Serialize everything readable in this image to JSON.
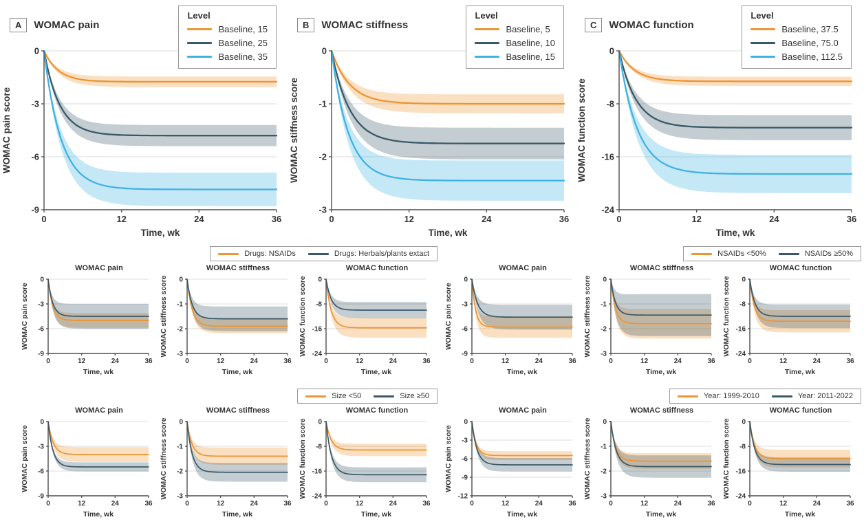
{
  "colors": {
    "orange": "#EE9432",
    "dark": "#3A5968",
    "blue": "#3FB2E5",
    "grid": "#DCDCDC",
    "axis": "#4D4D4D",
    "border": "#9B9B9B",
    "text": "#333333",
    "band_opacity": 0.3
  },
  "chart_data": {
    "xlabel": "Time, wk",
    "xlim": [
      0,
      36
    ],
    "x_ticks": [
      0,
      12,
      24,
      36
    ],
    "top_panels": [
      {
        "panel": "A",
        "type": "line",
        "title": "WOMAC pain",
        "ylabel": "WOMAC pain score",
        "legend_title": "Level",
        "ylim": [
          -9,
          0
        ],
        "y_ticks": [
          0,
          -3,
          -6,
          -9
        ],
        "series": [
          {
            "name": "Baseline, 15",
            "color": "orange",
            "plateau": -1.75,
            "tau": 2.2,
            "ci": 0.3
          },
          {
            "name": "Baseline, 25",
            "color": "dark",
            "plateau": -4.8,
            "tau": 2.4,
            "ci": 0.6
          },
          {
            "name": "Baseline, 35",
            "color": "blue",
            "plateau": -7.85,
            "tau": 2.6,
            "ci": 0.95
          }
        ]
      },
      {
        "panel": "B",
        "type": "line",
        "title": "WOMAC stiffness",
        "ylabel": "WOMAC stiffness score",
        "legend_title": "Level",
        "ylim": [
          -3,
          0
        ],
        "y_ticks": [
          0,
          -1,
          -2,
          -3
        ],
        "series": [
          {
            "name": "Baseline, 5",
            "color": "orange",
            "plateau": -1.0,
            "tau": 2.8,
            "ci": 0.18
          },
          {
            "name": "Baseline, 10",
            "color": "dark",
            "plateau": -1.75,
            "tau": 2.8,
            "ci": 0.3
          },
          {
            "name": "Baseline, 15",
            "color": "blue",
            "plateau": -2.45,
            "tau": 2.6,
            "ci": 0.38
          }
        ]
      },
      {
        "panel": "C",
        "type": "line",
        "title": "WOMAC function",
        "ylabel": "WOMAC function score",
        "legend_title": "Level",
        "ylim": [
          -24,
          0
        ],
        "y_ticks": [
          0,
          -8,
          -16,
          -24
        ],
        "series": [
          {
            "name": "Baseline, 37.5",
            "color": "orange",
            "plateau": -4.6,
            "tau": 2.4,
            "ci": 0.7
          },
          {
            "name": "Baseline, 75.0",
            "color": "dark",
            "plateau": -11.6,
            "tau": 2.6,
            "ci": 1.9
          },
          {
            "name": "Baseline, 112.5",
            "color": "blue",
            "plateau": -18.6,
            "tau": 2.8,
            "ci": 2.9
          }
        ]
      }
    ],
    "groups": [
      {
        "legend": [
          {
            "name": "Drugs: NSAIDs",
            "color": "orange"
          },
          {
            "name": "Drugs: Herbals/plants extact",
            "color": "dark"
          }
        ],
        "charts": [
          {
            "type": "line",
            "title": "WOMAC pain",
            "ylabel": "WOMAC pain score",
            "ylim": [
              -9,
              0
            ],
            "y_ticks": [
              0,
              -3,
              -6,
              -9
            ],
            "series": [
              {
                "name": "Drugs: NSAIDs",
                "color": "orange",
                "plateau": -5.0,
                "tau": 1.6,
                "ci": 0.9
              },
              {
                "name": "Drugs: Herbals/plants extact",
                "color": "dark",
                "plateau": -4.5,
                "tau": 1.6,
                "ci": 1.5
              }
            ]
          },
          {
            "type": "line",
            "title": "WOMAC stiffness",
            "ylabel": "WOMAC stiffness score",
            "ylim": [
              -3,
              0
            ],
            "y_ticks": [
              0,
              -1,
              -2,
              -3
            ],
            "series": [
              {
                "name": "Drugs: NSAIDs",
                "color": "orange",
                "plateau": -1.9,
                "tau": 1.8,
                "ci": 0.28
              },
              {
                "name": "Drugs: Herbals/plants extact",
                "color": "dark",
                "plateau": -1.6,
                "tau": 1.8,
                "ci": 0.5
              }
            ]
          },
          {
            "type": "line",
            "title": "WOMAC function",
            "ylabel": "WOMAC function score",
            "ylim": [
              -24,
              0
            ],
            "y_ticks": [
              0,
              -8,
              -16,
              -24
            ],
            "series": [
              {
                "name": "Drugs: NSAIDs",
                "color": "orange",
                "plateau": -15.7,
                "tau": 1.8,
                "ci": 3.2
              },
              {
                "name": "Drugs: Herbals/plants extact",
                "color": "dark",
                "plateau": -10.0,
                "tau": 1.8,
                "ci": 2.6
              }
            ]
          }
        ]
      },
      {
        "legend": [
          {
            "name": "NSAIDs <50%",
            "color": "orange"
          },
          {
            "name": "NSAIDs ≥50%",
            "color": "dark"
          }
        ],
        "charts": [
          {
            "type": "line",
            "title": "WOMAC pain",
            "ylabel": "WOMAC pain score",
            "ylim": [
              -9,
              0
            ],
            "y_ticks": [
              0,
              -3,
              -6,
              -9
            ],
            "series": [
              {
                "name": "NSAIDs <50%",
                "color": "orange",
                "plateau": -5.8,
                "tau": 1.3,
                "ci": 1.3
              },
              {
                "name": "NSAIDs ≥50%",
                "color": "dark",
                "plateau": -4.6,
                "tau": 2.0,
                "ci": 1.5
              }
            ]
          },
          {
            "type": "line",
            "title": "WOMAC stiffness",
            "ylabel": "WOMAC stiffness score",
            "ylim": [
              -3,
              0
            ],
            "y_ticks": [
              0,
              -1,
              -2,
              -3
            ],
            "series": [
              {
                "name": "NSAIDs <50%",
                "color": "orange",
                "plateau": -1.8,
                "tau": 1.6,
                "ci": 0.6
              },
              {
                "name": "NSAIDs ≥50%",
                "color": "dark",
                "plateau": -1.45,
                "tau": 1.6,
                "ci": 0.85
              }
            ]
          },
          {
            "type": "line",
            "title": "WOMAC function",
            "ylabel": "WOMAC function score",
            "ylim": [
              -24,
              0
            ],
            "y_ticks": [
              0,
              -8,
              -16,
              -24
            ],
            "series": [
              {
                "name": "NSAIDs <50%",
                "color": "orange",
                "plateau": -13.6,
                "tau": 1.6,
                "ci": 3.6
              },
              {
                "name": "NSAIDs ≥50%",
                "color": "dark",
                "plateau": -12.0,
                "tau": 1.8,
                "ci": 3.8
              }
            ]
          }
        ]
      },
      {
        "legend": [
          {
            "name": "Size <50",
            "color": "orange"
          },
          {
            "name": "Size ≥50",
            "color": "dark"
          }
        ],
        "charts": [
          {
            "type": "line",
            "title": "WOMAC pain",
            "ylabel": "WOMAC pain score",
            "ylim": [
              -9,
              0
            ],
            "y_ticks": [
              0,
              -3,
              -6,
              -9
            ],
            "series": [
              {
                "name": "Size <50",
                "color": "orange",
                "plateau": -4.0,
                "tau": 1.8,
                "ci": 0.9
              },
              {
                "name": "Size ≥50",
                "color": "dark",
                "plateau": -5.5,
                "tau": 1.7,
                "ci": 0.55
              }
            ]
          },
          {
            "type": "line",
            "title": "WOMAC stiffness",
            "ylabel": "WOMAC stiffness score",
            "ylim": [
              -3,
              0
            ],
            "y_ticks": [
              0,
              -1,
              -2,
              -3
            ],
            "series": [
              {
                "name": "Size <50",
                "color": "orange",
                "plateau": -1.4,
                "tau": 1.7,
                "ci": 0.35
              },
              {
                "name": "Size ≥50",
                "color": "dark",
                "plateau": -2.05,
                "tau": 1.8,
                "ci": 0.38
              }
            ]
          },
          {
            "type": "line",
            "title": "WOMAC function",
            "ylabel": "WOMAC function score",
            "ylim": [
              -24,
              0
            ],
            "y_ticks": [
              0,
              -8,
              -16,
              -24
            ],
            "series": [
              {
                "name": "Size <50",
                "color": "orange",
                "plateau": -9.2,
                "tau": 1.8,
                "ci": 2.0
              },
              {
                "name": "Size ≥50",
                "color": "dark",
                "plateau": -17.2,
                "tau": 1.9,
                "ci": 2.4
              }
            ]
          }
        ]
      },
      {
        "legend": [
          {
            "name": "Year: 1999-2010",
            "color": "orange"
          },
          {
            "name": "Year: 2011-2022",
            "color": "dark"
          }
        ],
        "charts": [
          {
            "type": "line",
            "title": "WOMAC pain",
            "ylabel": "WOMAC pain score",
            "ylim": [
              -12,
              0
            ],
            "y_ticks": [
              0,
              -3,
              -6,
              -9,
              -12
            ],
            "series": [
              {
                "name": "Year: 1999-2010",
                "color": "orange",
                "plateau": -5.5,
                "tau": 1.5,
                "ci": 0.7
              },
              {
                "name": "Year: 2011-2022",
                "color": "dark",
                "plateau": -7.0,
                "tau": 1.8,
                "ci": 1.1
              }
            ]
          },
          {
            "type": "line",
            "title": "WOMAC stiffness",
            "ylabel": "WOMAC stiffness score",
            "ylim": [
              -3,
              0
            ],
            "y_ticks": [
              0,
              -1,
              -2,
              -3
            ],
            "series": [
              {
                "name": "Year: 1999-2010",
                "color": "orange",
                "plateau": -1.6,
                "tau": 1.7,
                "ci": 0.32
              },
              {
                "name": "Year: 2011-2022",
                "color": "dark",
                "plateau": -1.82,
                "tau": 1.9,
                "ci": 0.45
              }
            ]
          },
          {
            "type": "line",
            "title": "WOMAC function",
            "ylabel": "WOMAC function score",
            "ylim": [
              -24,
              0
            ],
            "y_ticks": [
              0,
              -8,
              -16,
              -24
            ],
            "series": [
              {
                "name": "Year: 1999-2010",
                "color": "orange",
                "plateau": -12.0,
                "tau": 1.7,
                "ci": 2.9
              },
              {
                "name": "Year: 2011-2022",
                "color": "dark",
                "plateau": -13.9,
                "tau": 1.8,
                "ci": 2.3
              }
            ]
          }
        ]
      }
    ]
  }
}
